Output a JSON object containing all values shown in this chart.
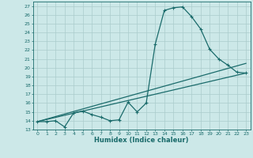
{
  "xlabel": "Humidex (Indice chaleur)",
  "bg_color": "#cce8e8",
  "line_color": "#1a6b6b",
  "grid_color": "#aacccc",
  "xlim": [
    -0.5,
    23.5
  ],
  "ylim": [
    13,
    27.5
  ],
  "xticks": [
    0,
    1,
    2,
    3,
    4,
    5,
    6,
    7,
    8,
    9,
    10,
    11,
    12,
    13,
    14,
    15,
    16,
    17,
    18,
    19,
    20,
    21,
    22,
    23
  ],
  "yticks": [
    13,
    14,
    15,
    16,
    17,
    18,
    19,
    20,
    21,
    22,
    23,
    24,
    25,
    26,
    27
  ],
  "line1_x": [
    0,
    1,
    2,
    3,
    4,
    5,
    6,
    7,
    8,
    9,
    10,
    11,
    12,
    13,
    14,
    15,
    16,
    17,
    18,
    19,
    20,
    21,
    22,
    23
  ],
  "line1_y": [
    13.9,
    13.9,
    14.0,
    13.3,
    14.9,
    15.1,
    14.7,
    14.4,
    14.0,
    14.1,
    16.1,
    15.0,
    16.0,
    22.7,
    26.5,
    26.8,
    26.9,
    25.8,
    24.4,
    22.1,
    21.0,
    20.3,
    19.5,
    19.4
  ],
  "line2_x": [
    0,
    23
  ],
  "line2_y": [
    13.9,
    20.5
  ],
  "line3_x": [
    0,
    23
  ],
  "line3_y": [
    13.9,
    19.4
  ]
}
